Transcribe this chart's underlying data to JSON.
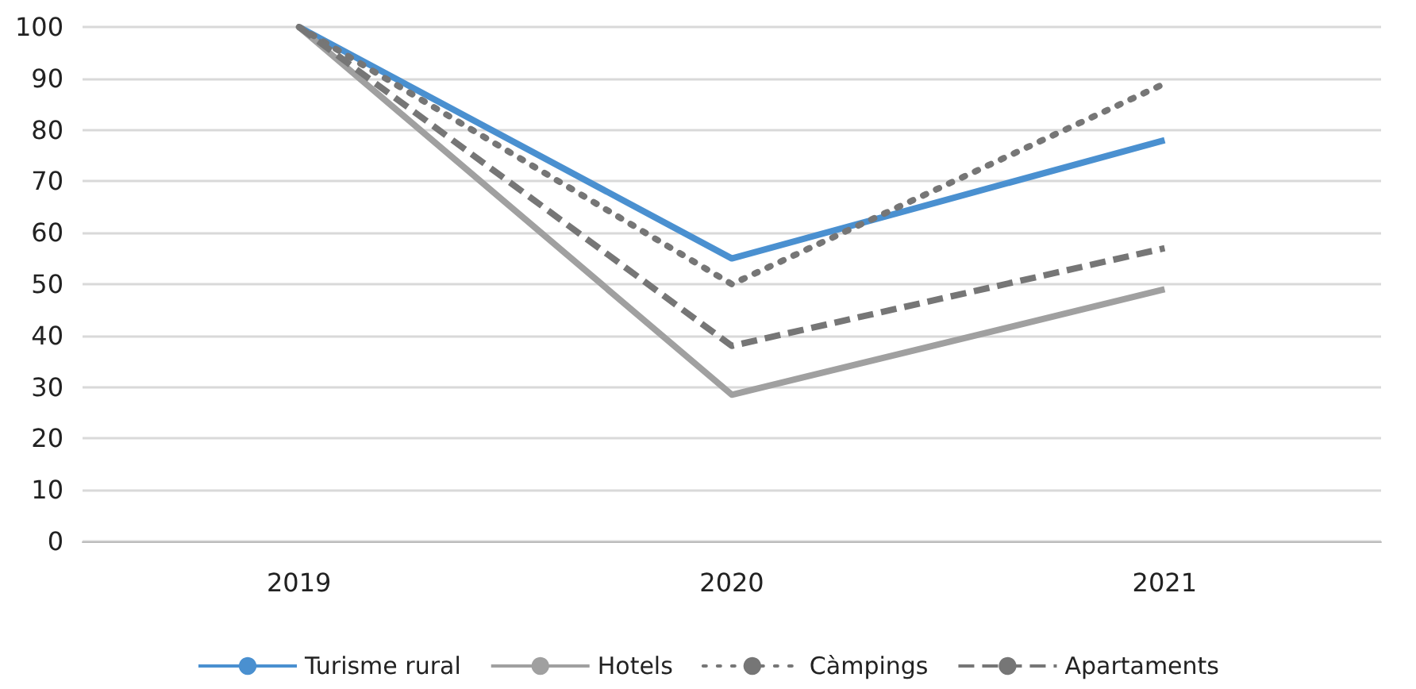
{
  "chart_data": {
    "type": "line",
    "categories": [
      "2019",
      "2020",
      "2021"
    ],
    "series": [
      {
        "name": "Turisme rural",
        "color": "#4a90d0",
        "line_style": "solid",
        "values": [
          100,
          55,
          78
        ]
      },
      {
        "name": "Hotels",
        "color": "#a0a0a0",
        "line_style": "solid",
        "values": [
          100,
          28.5,
          49
        ]
      },
      {
        "name": "Càmpings",
        "color": "#767676",
        "line_style": "dotted",
        "values": [
          100,
          50,
          89
        ]
      },
      {
        "name": "Apartaments",
        "color": "#767676",
        "line_style": "dashed",
        "values": [
          100,
          38,
          57
        ]
      }
    ],
    "ylim": [
      0,
      100
    ],
    "yticks": [
      0,
      10,
      20,
      30,
      40,
      50,
      60,
      70,
      80,
      90,
      100
    ],
    "grid": "y",
    "legend": "bottom",
    "marker": "none"
  }
}
